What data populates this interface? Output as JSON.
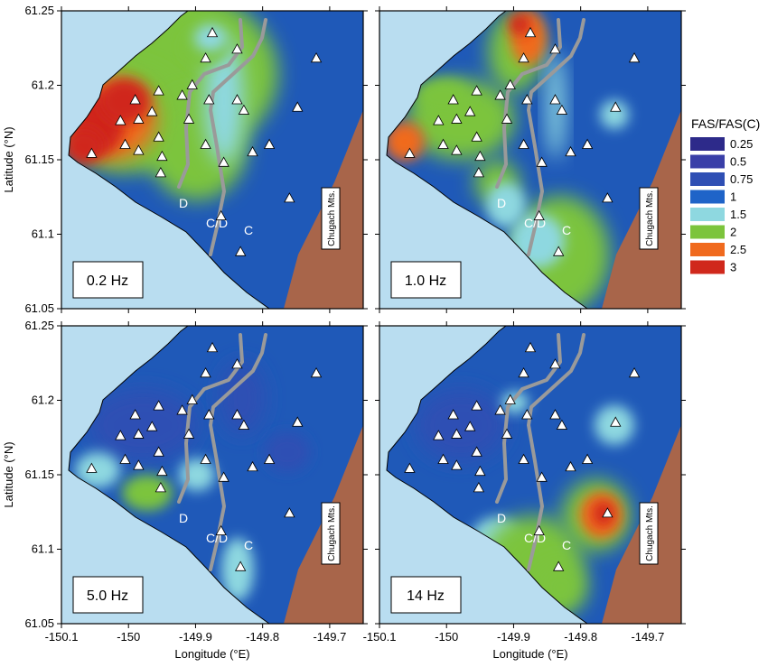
{
  "colors": {
    "water": "#b9ddf0",
    "land_base": "#1f59b8",
    "mountains": "#a8654a",
    "fault": "#9a9a9a",
    "station_fill": "#ffffff"
  },
  "axes": {
    "ylabel": "Latitude (°N)",
    "xlabel": "Longitude (°E)",
    "yticks": [
      "61.25",
      "61.2",
      "61.15",
      "61.1",
      "61.05"
    ],
    "xticks": [
      "-150.1",
      "-150",
      "-149.9",
      "-149.8",
      "-149.7"
    ],
    "xlim": [
      -150.1,
      -149.65
    ],
    "ylim": [
      61.05,
      61.25
    ]
  },
  "legend": {
    "title": "FAS/FAS(C)",
    "items": [
      {
        "label": "0.25",
        "color": "#2d2a8a"
      },
      {
        "label": "0.5",
        "color": "#3a3fa8"
      },
      {
        "label": "0.75",
        "color": "#2f4fb4"
      },
      {
        "label": "1",
        "color": "#1f64c8"
      },
      {
        "label": "1.5",
        "color": "#8ed8e0"
      },
      {
        "label": "2",
        "color": "#7cc43c"
      },
      {
        "label": "2.5",
        "color": "#f06a1e"
      },
      {
        "label": "3",
        "color": "#d0281c"
      }
    ]
  },
  "map_labels": {
    "d": "D",
    "cd": "C/D",
    "c": "C",
    "mountains": "Chugach Mts."
  },
  "panels": [
    {
      "frequency": "0.2 Hz"
    },
    {
      "frequency": "1.0 Hz"
    },
    {
      "frequency": "5.0 Hz"
    },
    {
      "frequency": "14 Hz"
    }
  ],
  "stations": [
    [
      -149.875,
      61.235
    ],
    [
      -149.885,
      61.218
    ],
    [
      -149.838,
      61.224
    ],
    [
      -149.72,
      61.218
    ],
    [
      -149.905,
      61.2
    ],
    [
      -149.955,
      61.196
    ],
    [
      -149.88,
      61.19
    ],
    [
      -149.838,
      61.19
    ],
    [
      -149.92,
      61.193
    ],
    [
      -149.99,
      61.19
    ],
    [
      -149.965,
      61.182
    ],
    [
      -149.828,
      61.183
    ],
    [
      -149.748,
      61.185
    ],
    [
      -149.985,
      61.177
    ],
    [
      -150.012,
      61.176
    ],
    [
      -149.91,
      61.177
    ],
    [
      -149.955,
      61.165
    ],
    [
      -149.885,
      61.16
    ],
    [
      -149.858,
      61.148
    ],
    [
      -149.79,
      61.16
    ],
    [
      -149.815,
      61.155
    ],
    [
      -150.005,
      61.16
    ],
    [
      -149.985,
      61.156
    ],
    [
      -149.95,
      61.152
    ],
    [
      -150.055,
      61.154
    ],
    [
      -149.952,
      61.141
    ],
    [
      -149.76,
      61.124
    ],
    [
      -149.862,
      61.112
    ],
    [
      -149.833,
      61.088
    ]
  ]
}
